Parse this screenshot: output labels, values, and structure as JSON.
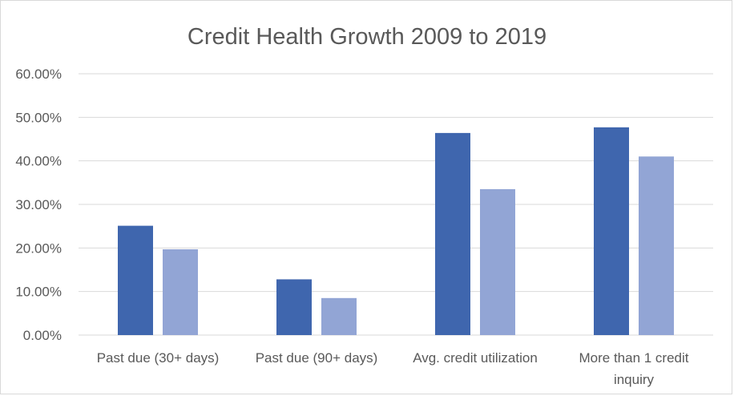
{
  "chart_data": {
    "type": "bar",
    "title": "Credit Health Growth 2009 to 2019",
    "xlabel": "",
    "ylabel": "",
    "ylim": [
      0,
      0.6
    ],
    "y_ticks": [
      0,
      0.1,
      0.2,
      0.3,
      0.4,
      0.5,
      0.6
    ],
    "y_tick_labels": [
      "0.00%",
      "10.00%",
      "20.00%",
      "30.00%",
      "40.00%",
      "50.00%",
      "60.00%"
    ],
    "categories": [
      [
        "Past due (30+ days)"
      ],
      [
        "Past due (90+ days)"
      ],
      [
        "Avg. credit utilization"
      ],
      [
        "More than  1 credit",
        "inquiry"
      ]
    ],
    "series": [
      {
        "values": [
          0.251,
          0.128,
          0.464,
          0.477
        ],
        "color": "#3f66ae"
      },
      {
        "values": [
          0.197,
          0.085,
          0.335,
          0.41
        ],
        "color": "#92a5d5"
      }
    ],
    "grid": true,
    "legend": "none"
  }
}
